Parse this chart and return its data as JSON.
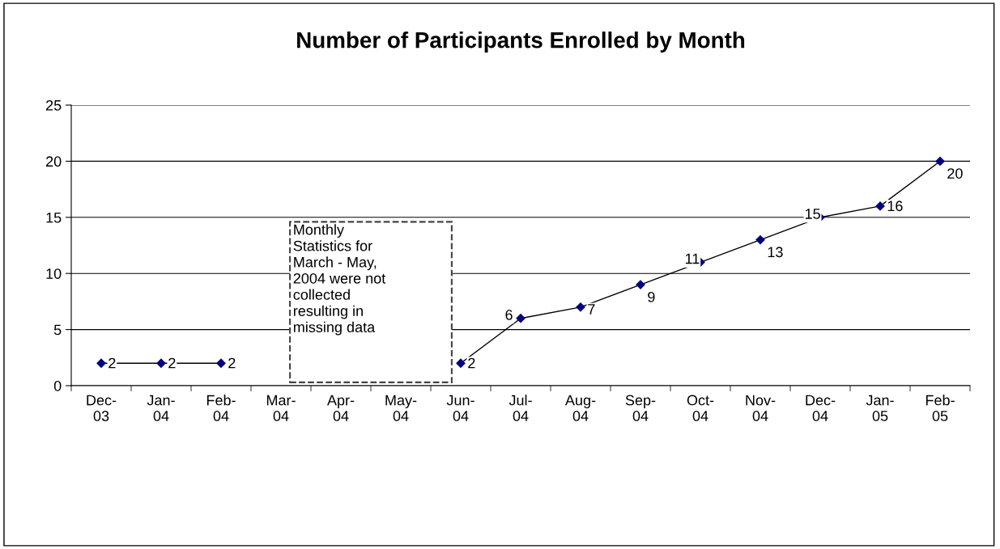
{
  "chart_data": {
    "type": "line",
    "title": "Number of Participants Enrolled by Month",
    "categories": [
      "Dec-03",
      "Jan-04",
      "Feb-04",
      "Mar-04",
      "Apr-04",
      "May-04",
      "Jun-04",
      "Jul-04",
      "Aug-04",
      "Sep-04",
      "Oct-04",
      "Nov-04",
      "Dec-04",
      "Jan-05",
      "Feb-05"
    ],
    "series": [
      {
        "color": "#000080",
        "values": [
          2,
          2,
          2,
          null,
          null,
          null,
          2,
          6,
          7,
          9,
          11,
          13,
          15,
          16,
          20
        ]
      }
    ],
    "ylim": [
      0,
      25
    ],
    "yticks": [
      0,
      5,
      10,
      15,
      20,
      25
    ],
    "grid": "y",
    "marker": "diamond",
    "line_style": "solid",
    "data_labels": true,
    "legend": false,
    "annotations": [
      "Monthly Statistics for March - May, 2004 were not collected resulting in missing data"
    ]
  }
}
